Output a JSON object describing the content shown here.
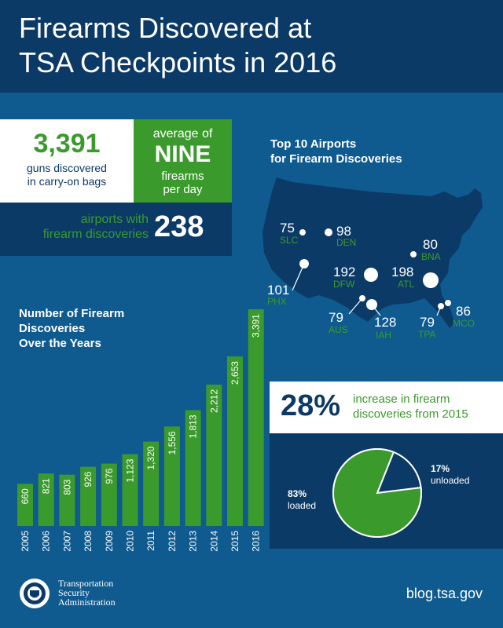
{
  "title": {
    "line1": "Firearms Discovered at",
    "line2": "TSA Checkpoints in 2016"
  },
  "stats": {
    "guns_count": "3,391",
    "guns_line1": "guns discovered",
    "guns_line2": "in carry-on bags",
    "average_line1": "average of",
    "average_big": "NINE",
    "average_line2": "firearms",
    "average_line3": "per day",
    "airports_line1": "airports with",
    "airports_line2": "firearm discoveries",
    "airports_count": "238"
  },
  "map": {
    "title_line1": "Top 10 Airports",
    "title_line2": "for Firearm Discoveries",
    "airports": [
      {
        "code": "SLC",
        "count": "75"
      },
      {
        "code": "DEN",
        "count": "98"
      },
      {
        "code": "BNA",
        "count": "80"
      },
      {
        "code": "DFW",
        "count": "192"
      },
      {
        "code": "ATL",
        "count": "198"
      },
      {
        "code": "PHX",
        "count": "101"
      },
      {
        "code": "AUS",
        "count": "79"
      },
      {
        "code": "IAH",
        "count": "128"
      },
      {
        "code": "TPA",
        "count": "79"
      },
      {
        "code": "MCO",
        "count": "86"
      }
    ]
  },
  "chart_title": {
    "line1": "Number of Firearm",
    "line2": "Discoveries",
    "line3": "Over the Years"
  },
  "chart_data": [
    {
      "type": "bar",
      "title": "Number of Firearm Discoveries Over the Years",
      "categories": [
        "2005",
        "2006",
        "2007",
        "2008",
        "2009",
        "2010",
        "2011",
        "2012",
        "2013",
        "2014",
        "2015",
        "2016"
      ],
      "values": [
        660,
        821,
        803,
        926,
        976,
        1123,
        1320,
        1556,
        1813,
        2212,
        2653,
        3391
      ],
      "labels": [
        "660",
        "821",
        "803",
        "926",
        "976",
        "1,123",
        "1,320",
        "1,556",
        "1,813",
        "2,212",
        "2,653",
        "3,391"
      ],
      "color": "#3b9a2c"
    },
    {
      "type": "pie",
      "slices": [
        {
          "label": "loaded",
          "pct_label": "83%",
          "value": 83,
          "color": "#3b9a2c"
        },
        {
          "label": "unloaded",
          "pct_label": "17%",
          "value": 17,
          "color": "#0c3a66"
        }
      ]
    }
  ],
  "increase": {
    "pct": "28%",
    "text_line1": "increase in firearm",
    "text_line2": "discoveries from 2015"
  },
  "footer": {
    "agency_line1": "Transportation",
    "agency_line2": "Security",
    "agency_line3": "Administration",
    "url": "blog.tsa.gov"
  },
  "colors": {
    "background": "#0f5a8f",
    "dark": "#0c3a66",
    "green": "#3b9a2c",
    "white": "#ffffff"
  }
}
